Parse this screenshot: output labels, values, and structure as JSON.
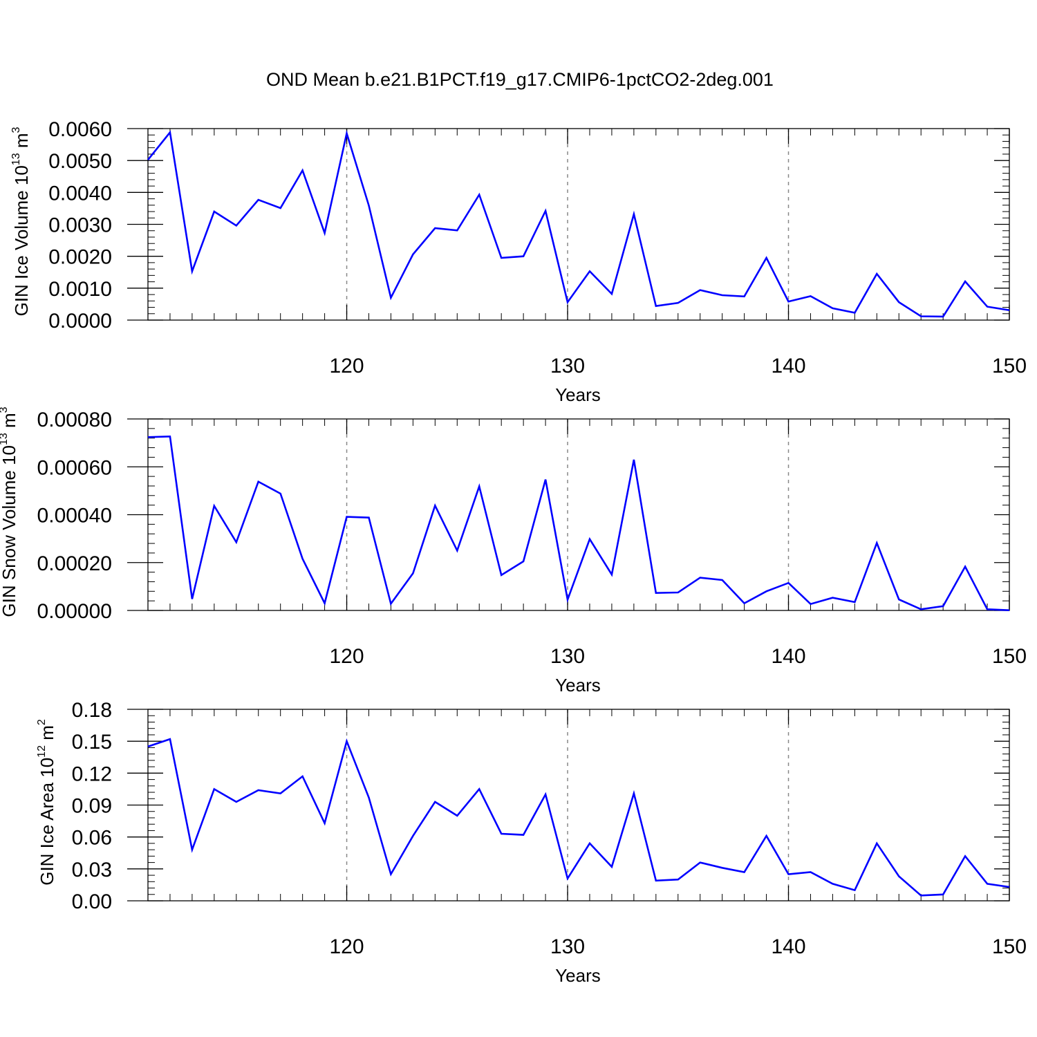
{
  "title": "OND Mean b.e21.B1PCT.f19_g17.CMIP6-1pctCO2-2deg.001",
  "colors": {
    "line": "#0000ff",
    "axis": "#000000",
    "gridline": "#888888"
  },
  "chart_data": [
    {
      "type": "line",
      "xlabel": "Years",
      "ylabel": {
        "text": "GIN Ice Volume 10",
        "exponent": "13",
        "unit": " m",
        "unit_exponent": "3"
      },
      "xlim": [
        111,
        150
      ],
      "ylim": [
        0,
        0.006
      ],
      "xticks": [
        120,
        130,
        140,
        150
      ],
      "yticks": [
        "0.0000",
        "0.0010",
        "0.0020",
        "0.0030",
        "0.0040",
        "0.0050",
        "0.0060"
      ],
      "grid": "dashed vertical at x ticks",
      "x": [
        111,
        112,
        113,
        114,
        115,
        116,
        117,
        118,
        119,
        120,
        121,
        122,
        123,
        124,
        125,
        126,
        127,
        128,
        129,
        130,
        131,
        132,
        133,
        134,
        135,
        136,
        137,
        138,
        139,
        140,
        141,
        142,
        143,
        144,
        145,
        146,
        147,
        148,
        149,
        150
      ],
      "values": [
        0.00502,
        0.00588,
        0.00153,
        0.0034,
        0.00296,
        0.00377,
        0.00351,
        0.00469,
        0.00273,
        0.00585,
        0.00359,
        0.0007,
        0.00206,
        0.00288,
        0.00281,
        0.00393,
        0.00195,
        0.002,
        0.00342,
        0.00056,
        0.00153,
        0.00082,
        0.00332,
        0.00044,
        0.00054,
        0.00094,
        0.00078,
        0.00074,
        0.00195,
        0.00058,
        0.00075,
        0.00037,
        0.00023,
        0.00145,
        0.00056,
        0.00012,
        0.00011,
        0.00121,
        0.00042,
        0.00031
      ]
    },
    {
      "type": "line",
      "xlabel": "Years",
      "ylabel": {
        "text": "GIN Snow Volume 10",
        "exponent": "13",
        "unit": " m",
        "unit_exponent": "3"
      },
      "xlim": [
        111,
        150
      ],
      "ylim": [
        0,
        0.0008
      ],
      "xticks": [
        120,
        130,
        140,
        150
      ],
      "yticks": [
        "0.00000",
        "0.00020",
        "0.00040",
        "0.00060",
        "0.00080"
      ],
      "grid": "dashed vertical at x ticks",
      "x": [
        111,
        112,
        113,
        114,
        115,
        116,
        117,
        118,
        119,
        120,
        121,
        122,
        123,
        124,
        125,
        126,
        127,
        128,
        129,
        130,
        131,
        132,
        133,
        134,
        135,
        136,
        137,
        138,
        139,
        140,
        141,
        142,
        143,
        144,
        145,
        146,
        147,
        148,
        149,
        150
      ],
      "values": [
        0.000724,
        0.000727,
        4.8e-05,
        0.000437,
        0.000285,
        0.000538,
        0.000488,
        0.000216,
        3e-05,
        0.000391,
        0.000388,
        2.8e-05,
        0.000155,
        0.000438,
        0.00025,
        0.000518,
        0.000148,
        0.000205,
        0.000547,
        4.5e-05,
        0.000298,
        0.00015,
        0.00063,
        7.3e-05,
        7.5e-05,
        0.000137,
        0.000127,
        3e-05,
        8e-05,
        0.000115,
        2.7e-05,
        5.3e-05,
        3.5e-05,
        0.000282,
        4.6e-05,
        5e-06,
        1.8e-05,
        0.000183,
        5e-06,
        1e-06
      ]
    },
    {
      "type": "line",
      "xlabel": "Years",
      "ylabel": {
        "text": "GIN Ice Area 10",
        "exponent": "12",
        "unit": " m",
        "unit_exponent": "2"
      },
      "xlim": [
        111,
        150
      ],
      "ylim": [
        0,
        0.18
      ],
      "xticks": [
        120,
        130,
        140,
        150
      ],
      "yticks": [
        "0.00",
        "0.03",
        "0.06",
        "0.09",
        "0.12",
        "0.15",
        "0.18"
      ],
      "grid": "dashed vertical at x ticks",
      "x": [
        111,
        112,
        113,
        114,
        115,
        116,
        117,
        118,
        119,
        120,
        121,
        122,
        123,
        124,
        125,
        126,
        127,
        128,
        129,
        130,
        131,
        132,
        133,
        134,
        135,
        136,
        137,
        138,
        139,
        140,
        141,
        142,
        143,
        144,
        145,
        146,
        147,
        148,
        149,
        150
      ],
      "values": [
        0.145,
        0.152,
        0.048,
        0.105,
        0.093,
        0.104,
        0.101,
        0.117,
        0.073,
        0.15,
        0.097,
        0.025,
        0.061,
        0.093,
        0.08,
        0.105,
        0.063,
        0.062,
        0.1,
        0.021,
        0.054,
        0.032,
        0.101,
        0.019,
        0.02,
        0.036,
        0.031,
        0.027,
        0.061,
        0.025,
        0.027,
        0.016,
        0.01,
        0.054,
        0.023,
        0.005,
        0.006,
        0.042,
        0.016,
        0.013
      ]
    }
  ]
}
